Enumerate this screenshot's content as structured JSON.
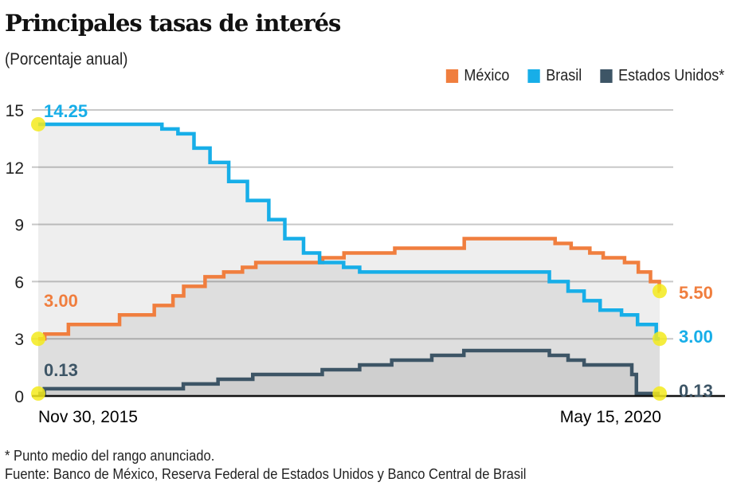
{
  "chart_data": {
    "type": "line",
    "step": true,
    "title": "Principales tasas de interés",
    "subtitle": "(Porcentaje anual)",
    "ylim": [
      0,
      15
    ],
    "yticks": [
      0,
      3,
      6,
      9,
      12,
      15
    ],
    "grid": true,
    "legend_position": "top-right",
    "x_tick_labels": [
      "Nov 30, 2015",
      "May 15, 2020"
    ],
    "x_range": [
      "2015-11-30",
      "2020-05-15"
    ],
    "series": [
      {
        "name": "México",
        "color": "#f07e3e",
        "start_label": "3.00",
        "end_label": "5.50",
        "points": [
          [
            "2015-11-30",
            3.0
          ],
          [
            "2015-12-17",
            3.25
          ],
          [
            "2016-02-17",
            3.75
          ],
          [
            "2016-06-30",
            4.25
          ],
          [
            "2016-09-29",
            4.75
          ],
          [
            "2016-11-17",
            5.25
          ],
          [
            "2016-12-15",
            5.75
          ],
          [
            "2017-02-09",
            6.25
          ],
          [
            "2017-03-30",
            6.5
          ],
          [
            "2017-05-18",
            6.75
          ],
          [
            "2017-06-22",
            7.0
          ],
          [
            "2017-12-14",
            7.25
          ],
          [
            "2018-02-08",
            7.5
          ],
          [
            "2018-06-21",
            7.75
          ],
          [
            "2018-12-20",
            8.25
          ],
          [
            "2019-08-15",
            8.0
          ],
          [
            "2019-09-26",
            7.75
          ],
          [
            "2019-11-14",
            7.5
          ],
          [
            "2019-12-19",
            7.25
          ],
          [
            "2020-02-13",
            7.0
          ],
          [
            "2020-03-20",
            6.5
          ],
          [
            "2020-04-21",
            6.0
          ],
          [
            "2020-05-14",
            5.5
          ],
          [
            "2020-05-15",
            5.5
          ]
        ]
      },
      {
        "name": "Brasil",
        "color": "#17aee8",
        "start_label": "14.25",
        "end_label": "3.00",
        "points": [
          [
            "2015-11-30",
            14.25
          ],
          [
            "2016-10-19",
            14.0
          ],
          [
            "2016-11-30",
            13.75
          ],
          [
            "2017-01-11",
            13.0
          ],
          [
            "2017-02-22",
            12.25
          ],
          [
            "2017-04-12",
            11.25
          ],
          [
            "2017-05-31",
            10.25
          ],
          [
            "2017-07-26",
            9.25
          ],
          [
            "2017-09-06",
            8.25
          ],
          [
            "2017-10-25",
            7.5
          ],
          [
            "2017-12-06",
            7.0
          ],
          [
            "2018-02-07",
            6.75
          ],
          [
            "2018-03-21",
            6.5
          ],
          [
            "2019-07-31",
            6.0
          ],
          [
            "2019-09-18",
            5.5
          ],
          [
            "2019-10-30",
            5.0
          ],
          [
            "2019-12-11",
            4.5
          ],
          [
            "2020-02-05",
            4.25
          ],
          [
            "2020-03-18",
            3.75
          ],
          [
            "2020-05-06",
            3.0
          ],
          [
            "2020-05-15",
            3.0
          ]
        ]
      },
      {
        "name": "Estados Unidos*",
        "color": "#3d5566",
        "start_label": "0.13",
        "end_label": "0.13",
        "points": [
          [
            "2015-11-30",
            0.13
          ],
          [
            "2015-12-16",
            0.38
          ],
          [
            "2016-12-14",
            0.63
          ],
          [
            "2017-03-15",
            0.88
          ],
          [
            "2017-06-14",
            1.13
          ],
          [
            "2017-12-13",
            1.38
          ],
          [
            "2018-03-21",
            1.63
          ],
          [
            "2018-06-13",
            1.88
          ],
          [
            "2018-09-26",
            2.13
          ],
          [
            "2018-12-19",
            2.38
          ],
          [
            "2019-07-31",
            2.13
          ],
          [
            "2019-09-18",
            1.88
          ],
          [
            "2019-10-30",
            1.63
          ],
          [
            "2020-03-03",
            1.13
          ],
          [
            "2020-03-15",
            0.13
          ],
          [
            "2020-05-15",
            0.13
          ]
        ]
      }
    ],
    "highlight_color": "#f3ea1c"
  },
  "footnotes": {
    "note": "* Punto medio del rango anunciado.",
    "source": "Fuente: Banco de México, Reserva Federal de Estados Unidos y Banco Central de Brasil"
  }
}
